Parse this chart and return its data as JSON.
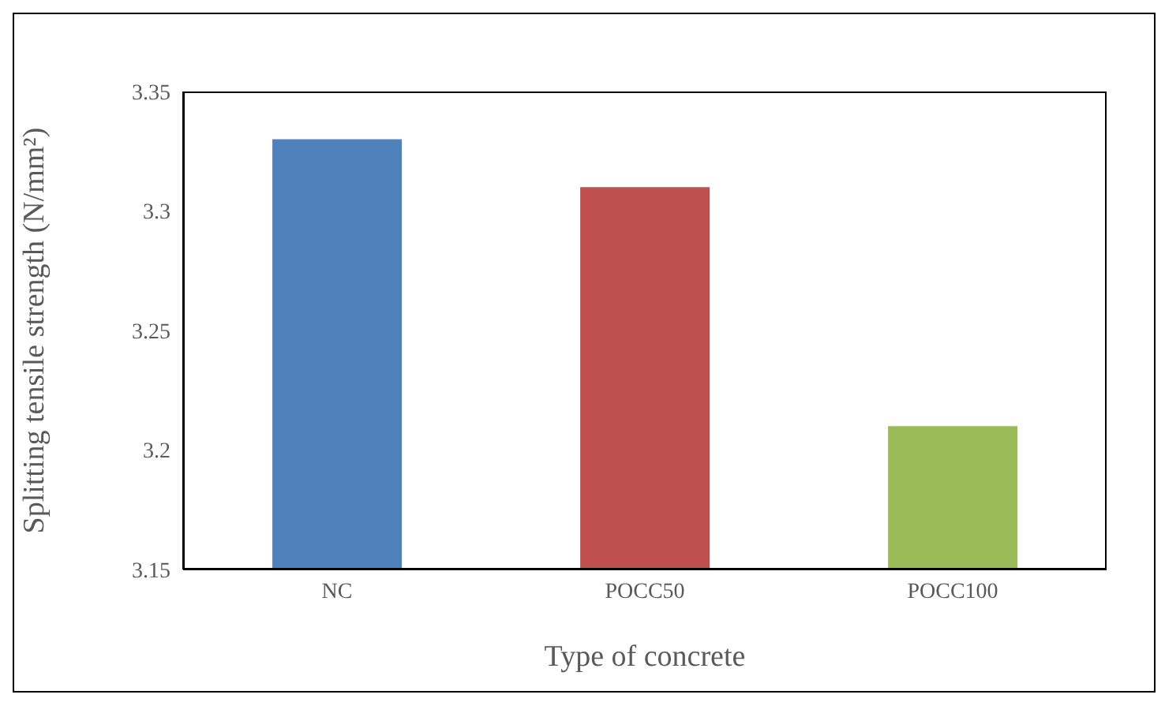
{
  "chart_data": {
    "type": "bar",
    "xlabel": "Type of concrete",
    "ylabel": "Splitting tensile strength (N/mm²)",
    "categories": [
      "NC",
      "POCC50",
      "POCC100"
    ],
    "values": [
      3.33,
      3.31,
      3.21
    ],
    "colors": [
      "#4f81bd",
      "#c0504d",
      "#9bbb59"
    ],
    "ylim": [
      3.15,
      3.35
    ],
    "yticks": [
      3.15,
      3.2,
      3.25,
      3.3,
      3.35
    ],
    "grid": false,
    "legend": false
  }
}
